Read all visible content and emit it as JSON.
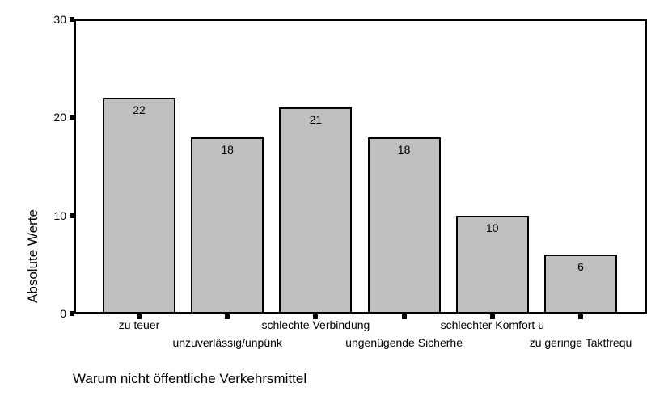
{
  "chart_data": {
    "type": "bar",
    "title": "",
    "categories": [
      "zu teuer",
      "unzuverlässig/unpünk",
      "schlechte Verbindung",
      "ungenügende Sicherhe",
      "schlechter Komfort u",
      "zu geringe Taktfrequ"
    ],
    "values": [
      22,
      18,
      21,
      18,
      10,
      6
    ],
    "value_labels_shown": true,
    "xlabel": "Warum nicht öffentliche Verkehrsmittel",
    "ylabel": "Absolute Werte",
    "ylim": [
      0,
      30
    ],
    "yticks": [
      "0",
      "10",
      "20",
      "30"
    ],
    "grid": false,
    "legend": null,
    "colors": {
      "bar_fill": "#c0c0c0",
      "bar_border": "#000000",
      "axis": "#000000",
      "text": "#000000",
      "background": "#ffffff"
    }
  }
}
